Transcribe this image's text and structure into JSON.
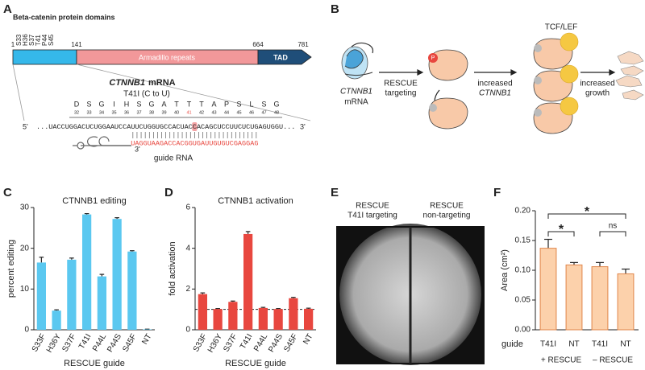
{
  "panel_labels": [
    "A",
    "B",
    "C",
    "D",
    "E",
    "F"
  ],
  "panel_a": {
    "title": "Beta-catenin protein domains",
    "positions": [
      "1",
      "S33",
      "H36",
      "S37",
      "T41",
      "P44",
      "S45",
      "141",
      "664",
      "781"
    ],
    "domains": [
      "Armadillo repeats",
      "TAD"
    ],
    "mrna_gene": "CTNNB1",
    "mrna_word": "mRNA",
    "mutation": "T41I (C to U)",
    "amino_acids": [
      "D",
      "S",
      "G",
      "I",
      "H",
      "S",
      "G",
      "A",
      "T",
      "T",
      "T",
      "A",
      "P",
      "S",
      "L",
      "S",
      "G"
    ],
    "codon_numbers": [
      32,
      33,
      34,
      35,
      36,
      37,
      38,
      39,
      40,
      41,
      42,
      43,
      44,
      45,
      46,
      47,
      48
    ],
    "five_prime": "5'",
    "three_prime": "3'",
    "mrna_left": "...UACCUGGACUCUGGAAUCCAUUCUGGUGCCACUAC",
    "mrna_edit": "C",
    "mrna_right": "ACAGCUCCUUCUCUGAGUGGU...",
    "guide_seq": "UAGGUAAGACCACGGUGAUUGUGUCGAGGAG",
    "guide_three_prime": "3'",
    "guide_label": "guide RNA"
  },
  "panel_b": {
    "mrna_gene": "CTNNB1",
    "mrna_word": "mRNA",
    "phospho": "P",
    "step1": [
      "RESCUE",
      "targeting"
    ],
    "step2": [
      "increased",
      "CTNNB1"
    ],
    "factor": "TCF/LEF",
    "step3": [
      "increased",
      "growth"
    ]
  },
  "panel_e": {
    "left": [
      "RESCUE",
      "T41I targeting"
    ],
    "right": [
      "RESCUE",
      "non-targeting"
    ]
  },
  "chart_data": [
    {
      "type": "bar",
      "title": "CTNNB1 editing",
      "y_label": "percent editing",
      "x_label": "RESCUE guide",
      "categories": [
        "S33F",
        "H36Y",
        "S37F",
        "T41I",
        "P44L",
        "P44S",
        "S45F",
        "NT"
      ],
      "values": [
        16.5,
        4.7,
        17.2,
        28.3,
        13.1,
        27.2,
        19.2,
        0.1
      ],
      "errors": [
        1.3,
        0.2,
        0.4,
        0.2,
        0.5,
        0.3,
        0.2,
        0.05
      ],
      "color": "#5bc8f0",
      "ylim": [
        0,
        30
      ],
      "yticks": [
        0,
        10,
        20,
        30
      ]
    },
    {
      "type": "bar",
      "title": "CTNNB1 activation",
      "y_label": "fold activation",
      "x_label": "RESCUE guide",
      "categories": [
        "S33F",
        "H36Y",
        "S37F",
        "T41I",
        "P44L",
        "P44S",
        "S45F",
        "NT"
      ],
      "values": [
        1.75,
        1.02,
        1.37,
        4.7,
        1.07,
        1.02,
        1.55,
        1.03
      ],
      "errors": [
        0.06,
        0.02,
        0.04,
        0.12,
        0.03,
        0.02,
        0.04,
        0.03
      ],
      "color": "#e8473f",
      "ylim": [
        0,
        6
      ],
      "yticks": [
        0,
        2,
        4,
        6
      ],
      "reference_line": 1
    },
    {
      "type": "bar",
      "y_label": "Area (cm²)",
      "x_label": "guide",
      "categories": [
        "T41I",
        "NT",
        "T41I",
        "NT"
      ],
      "groups": [
        "+ RESCUE",
        "– RESCUE"
      ],
      "values": [
        0.137,
        0.109,
        0.106,
        0.094
      ],
      "errors": [
        0.015,
        0.004,
        0.007,
        0.008
      ],
      "color": "#fcd1ab",
      "edge_color": "#e0854a",
      "ylim": [
        0,
        0.2
      ],
      "yticks": [
        {
          "value": 0,
          "label": "0.00"
        },
        {
          "value": 0.05,
          "label": "0.05"
        },
        {
          "value": 0.1,
          "label": "0.10"
        },
        {
          "value": 0.15,
          "label": "0.15"
        },
        {
          "value": 0.2,
          "label": "0.20"
        }
      ],
      "significance": [
        "*",
        "ns",
        "*"
      ]
    }
  ]
}
